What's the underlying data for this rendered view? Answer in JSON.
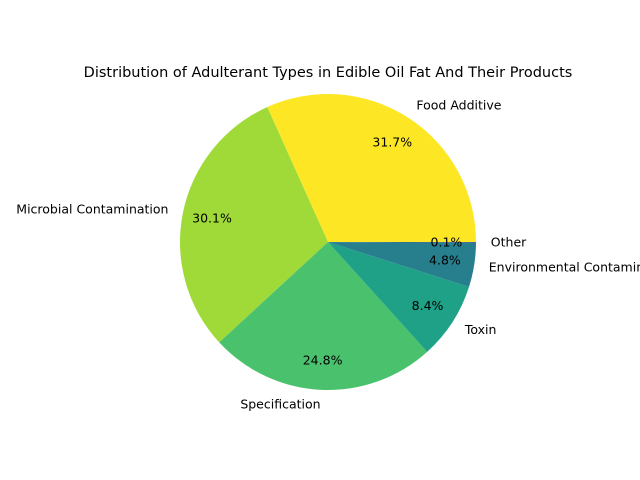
{
  "chart_data": {
    "type": "pie",
    "title": "Distribution of Adulterant Types in Edible Oil Fat And Their Products",
    "start_angle_deg": 0,
    "direction": "counterclockwise",
    "slices": [
      {
        "label": "Food Additive",
        "value": 31.7,
        "pct_label": "31.7%",
        "color": "#fde725"
      },
      {
        "label": "Microbial Contamination",
        "value": 30.1,
        "pct_label": "30.1%",
        "color": "#a0da39"
      },
      {
        "label": "Specification",
        "value": 24.8,
        "pct_label": "24.8%",
        "color": "#4ac16d"
      },
      {
        "label": "Toxin",
        "value": 8.4,
        "pct_label": "8.4%",
        "color": "#1fa187"
      },
      {
        "label": "Environmental Contaminant",
        "value": 4.8,
        "pct_label": "4.8%",
        "color": "#277f8e"
      },
      {
        "label": "Other",
        "value": 0.1,
        "pct_label": "0.1%",
        "color": "#365c8d"
      }
    ]
  }
}
